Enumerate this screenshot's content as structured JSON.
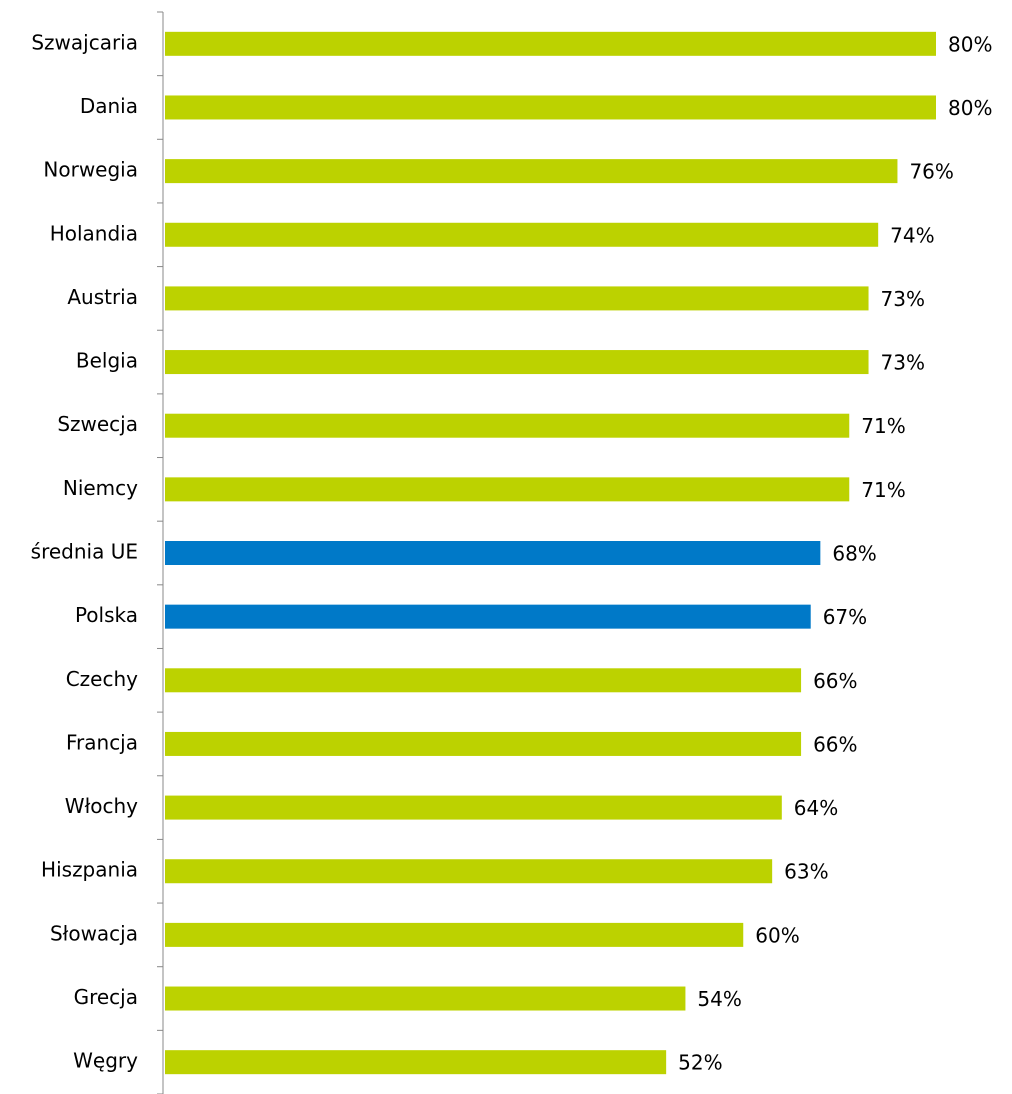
{
  "chart_data": {
    "type": "bar",
    "categories": [
      "Szwajcaria",
      "Dania",
      "Norwegia",
      "Holandia",
      "Austria",
      "Belgia",
      "Szwecja",
      "Niemcy",
      "średnia UE",
      "Polska",
      "Czechy",
      "Francja",
      "Włochy",
      "Hiszpania",
      "Słowacja",
      "Grecja",
      "Węgry"
    ],
    "values": [
      80,
      80,
      76,
      74,
      73,
      73,
      71,
      71,
      68,
      67,
      66,
      66,
      64,
      63,
      60,
      54,
      52
    ],
    "value_labels": [
      "80%",
      "80%",
      "76%",
      "74%",
      "73%",
      "73%",
      "71%",
      "71%",
      "68%",
      "67%",
      "66%",
      "66%",
      "64%",
      "63%",
      "60%",
      "54%",
      "52%"
    ],
    "colors": [
      "#bcd200",
      "#bcd200",
      "#bcd200",
      "#bcd200",
      "#bcd200",
      "#bcd200",
      "#bcd200",
      "#bcd200",
      "#0079c8",
      "#0079c8",
      "#bcd200",
      "#bcd200",
      "#bcd200",
      "#bcd200",
      "#bcd200",
      "#bcd200",
      "#bcd200"
    ]
  }
}
